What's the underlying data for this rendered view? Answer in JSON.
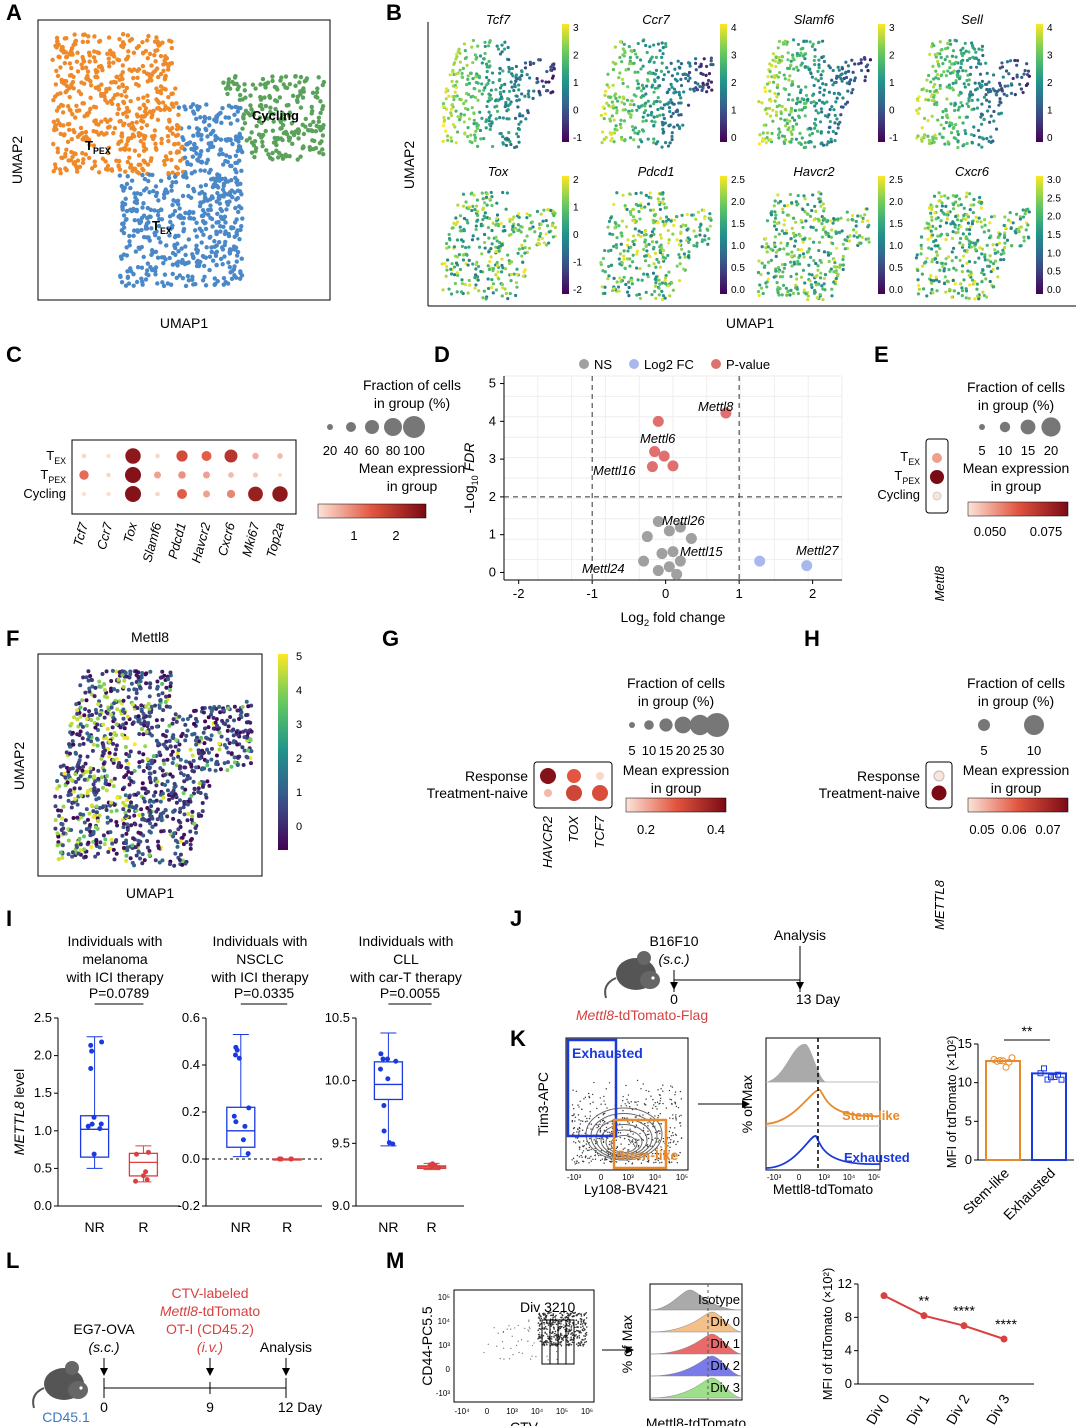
{
  "panel_letters": [
    "A",
    "B",
    "C",
    "D",
    "E",
    "F",
    "G",
    "H",
    "I",
    "J",
    "K",
    "L",
    "M"
  ],
  "colors": {
    "tpex": "#ee8a2a",
    "tex": "#4a88c8",
    "cycling": "#5aa25a",
    "red": "#d94040",
    "blue": "#1a3adf",
    "orange": "#e88a2a",
    "ns": "#a0a0a0",
    "lfc": "#a8b8ee",
    "pval": "#e07070"
  },
  "panelA": {
    "xlabel": "UMAP1",
    "ylabel": "UMAP2",
    "clusters": [
      {
        "name": "T",
        "sub": "PEX"
      },
      {
        "name": "T",
        "sub": "EX"
      },
      {
        "name": "Cycling",
        "sub": ""
      }
    ]
  },
  "panelB": {
    "xlabel": "UMAP1",
    "ylabel": "UMAP2",
    "genes": [
      {
        "name": "Tcf7",
        "ticks": [
          "3",
          "2",
          "1",
          "0",
          "-1"
        ]
      },
      {
        "name": "Ccr7",
        "ticks": [
          "4",
          "3",
          "2",
          "1",
          "0"
        ]
      },
      {
        "name": "Slamf6",
        "ticks": [
          "3",
          "2",
          "1",
          "0",
          "-1"
        ]
      },
      {
        "name": "Sell",
        "ticks": [
          "4",
          "3",
          "2",
          "1",
          "0"
        ]
      },
      {
        "name": "Tox",
        "ticks": [
          "2",
          "1",
          "0",
          "-1",
          "-2"
        ]
      },
      {
        "name": "Pdcd1",
        "ticks": [
          "2.5",
          "2.0",
          "1.5",
          "1.0",
          "0.5",
          "0.0"
        ]
      },
      {
        "name": "Havcr2",
        "ticks": [
          "2.5",
          "2.0",
          "1.5",
          "1.0",
          "0.5",
          "0.0"
        ]
      },
      {
        "name": "Cxcr6",
        "ticks": [
          "3.0",
          "2.5",
          "2.0",
          "1.5",
          "1.0",
          "0.5",
          "0.0"
        ]
      }
    ]
  },
  "panelC": {
    "rows": [
      {
        "name": "T",
        "sub": "EX"
      },
      {
        "name": "T",
        "sub": "PEX"
      },
      {
        "name": "Cycling",
        "sub": ""
      }
    ],
    "cols": [
      "Tcf7",
      "Ccr7",
      "Tox",
      "Slamf6",
      "Pdcd1",
      "Havcr2",
      "Cxcr6",
      "Mki67",
      "Top2a"
    ],
    "dots": [
      [
        0.05,
        0.02,
        0.95,
        0.05,
        0.6,
        0.5,
        0.75,
        0.2,
        0.15
      ],
      [
        0.45,
        0.05,
        1.0,
        0.25,
        0.3,
        0.25,
        0.15,
        0.1,
        0.02
      ],
      [
        0.02,
        0.02,
        1.0,
        0.05,
        0.5,
        0.25,
        0.35,
        0.9,
        0.95
      ]
    ],
    "legend_title": "Fraction of cells\nin group (%)",
    "size_ticks": [
      "20",
      "40",
      "60",
      "80",
      "100"
    ],
    "color_title": "Mean expression\nin group",
    "color_ticks": [
      "1",
      "2"
    ]
  },
  "panelD": {
    "xlabel": "Log",
    "xlabel_sub": "2",
    "xlabel_rest": " fold change",
    "ylabel": "-Log",
    "ylabel_sub": "10",
    "ylabel_rest": " FDR",
    "legend": [
      "NS",
      "Log2 FC",
      "P-value"
    ],
    "xticks": [
      "-2",
      "-1",
      "0",
      "1",
      "2"
    ],
    "yticks": [
      "0",
      "1",
      "2",
      "3",
      "4",
      "5"
    ],
    "labels": [
      "Mettl8",
      "Mettl6",
      "Mettl16",
      "Mettl26",
      "Mettl15",
      "Mettl27",
      "Mettl24"
    ]
  },
  "chart_data": {
    "type": "scatter",
    "xlim": [
      -2.2,
      2.4
    ],
    "ylim": [
      -0.2,
      5.2
    ],
    "thresholds": {
      "x": [
        -1,
        1
      ],
      "y": 2
    },
    "points": [
      {
        "x": 0.82,
        "y": 4.22,
        "class": "P-value",
        "label": "Mettl8"
      },
      {
        "x": -0.1,
        "y": 4.0,
        "class": "P-value"
      },
      {
        "x": -0.02,
        "y": 3.08,
        "class": "P-value",
        "label": "Mettl6"
      },
      {
        "x": -0.15,
        "y": 3.2,
        "class": "P-value"
      },
      {
        "x": 0.1,
        "y": 2.82,
        "class": "P-value"
      },
      {
        "x": -0.18,
        "y": 2.8,
        "class": "P-value",
        "label": "Mettl16"
      },
      {
        "x": -0.1,
        "y": 1.35,
        "class": "NS"
      },
      {
        "x": 0.05,
        "y": 1.1,
        "class": "NS"
      },
      {
        "x": 0.2,
        "y": 1.2,
        "class": "NS",
        "label": "Mettl26"
      },
      {
        "x": -0.25,
        "y": 0.95,
        "class": "NS"
      },
      {
        "x": 0.35,
        "y": 0.9,
        "class": "NS"
      },
      {
        "x": 0.1,
        "y": 0.55,
        "class": "NS",
        "label": "Mettl15"
      },
      {
        "x": -0.05,
        "y": 0.5,
        "class": "NS"
      },
      {
        "x": 0.2,
        "y": 0.3,
        "class": "NS"
      },
      {
        "x": -0.3,
        "y": 0.3,
        "class": "NS"
      },
      {
        "x": 0.05,
        "y": 0.15,
        "class": "NS"
      },
      {
        "x": -0.1,
        "y": 0.05,
        "class": "NS",
        "label": "Mettl24"
      },
      {
        "x": 0.15,
        "y": -0.05,
        "class": "NS"
      },
      {
        "x": 1.28,
        "y": 0.3,
        "class": "Log2 FC"
      },
      {
        "x": 1.92,
        "y": 0.18,
        "class": "Log2 FC",
        "label": "Mettl27"
      }
    ]
  },
  "panelE": {
    "rows": [
      {
        "name": "T",
        "sub": "EX"
      },
      {
        "name": "T",
        "sub": "PEX"
      },
      {
        "name": "Cycling",
        "sub": ""
      }
    ],
    "col": "Mettl8",
    "legend_title": "Fraction of cells\nin group (%)",
    "size_ticks": [
      "5",
      "10",
      "15",
      "20"
    ],
    "color_title": "Mean expression\nin group",
    "color_ticks": [
      "0.050",
      "0.075"
    ]
  },
  "panelF": {
    "title": "Mettl8",
    "xlabel": "UMAP1",
    "ylabel": "UMAP2",
    "ticks": [
      "5",
      "4",
      "3",
      "2",
      "1",
      "0"
    ]
  },
  "panelG": {
    "rows": [
      "Response",
      "Treatment-naive"
    ],
    "cols": [
      "HAVCR2",
      "TOX",
      "TCF7"
    ],
    "legend_title": "Fraction of cells\nin group (%)",
    "size_ticks": [
      "5",
      "10",
      "15",
      "20",
      "25",
      "30"
    ],
    "color_title": "Mean expression\nin group",
    "color_ticks": [
      "0.2",
      "0.4"
    ]
  },
  "panelH": {
    "rows": [
      "Response",
      "Treatment-naive"
    ],
    "col": "METTL8",
    "legend_title": "Fraction of cells\nin group (%)",
    "size_ticks": [
      "5",
      "10"
    ],
    "color_title": "Mean expression\nin group",
    "color_ticks": [
      "0.05",
      "0.06",
      "0.07"
    ]
  },
  "panelI": {
    "ylabel": "METTL8 level",
    "groups": [
      {
        "title": "Individuals with\nmelanoma\nwith ICI therapy",
        "p": "P=0.0789",
        "yticks": [
          "0.0",
          "0.5",
          "1.0",
          "1.5",
          "2.0",
          "2.5"
        ],
        "xt": [
          "NR",
          "R"
        ],
        "nr": {
          "min": 0.5,
          "q1": 0.65,
          "med": 1.02,
          "q3": 1.2,
          "max": 2.25
        },
        "r": {
          "min": 0.32,
          "q1": 0.4,
          "med": 0.58,
          "q3": 0.7,
          "max": 0.8
        }
      },
      {
        "title": "Individuals with\nNSCLC\nwith ICI therapy",
        "p": "P=0.0335",
        "yticks": [
          "-0.2",
          "0.0",
          "0.2",
          "0.4",
          "0.6"
        ],
        "xt": [
          "NR",
          "R"
        ],
        "nr": {
          "min": 0.01,
          "q1": 0.05,
          "med": 0.12,
          "q3": 0.22,
          "max": 0.53
        },
        "r": {
          "min": 0.0,
          "q1": 0.0,
          "med": 0.0,
          "q3": 0.0,
          "max": 0.0
        }
      },
      {
        "title": "Individuals with\nCLL\nwith car-T therapy",
        "p": "P=0.0055",
        "yticks": [
          "9.0",
          "9.5",
          "10.0",
          "10.5"
        ],
        "xt": [
          "NR",
          "R"
        ],
        "nr": {
          "min": 9.48,
          "q1": 9.85,
          "med": 9.97,
          "q3": 10.15,
          "max": 10.38
        },
        "r": {
          "min": 9.29,
          "q1": 9.3,
          "med": 9.31,
          "q3": 9.32,
          "max": 9.34
        }
      }
    ]
  },
  "panelJ": {
    "top": "B16F10",
    "route": "(s.c.)",
    "analysis": "Analysis",
    "t0": "0",
    "t1": "13 Day",
    "mouse": "Mettl8",
    "mouse_rest": "-tdTomato-Flag"
  },
  "panelK": {
    "facs_x": "Ly108-BV421",
    "facs_y": "Tim3-APC",
    "gate_ex": "Exhausted",
    "gate_st": "Stem-like",
    "hist_x": "Mettl8-tdTomato",
    "hist_y": "% of Max",
    "lbl_st": "Stem-like",
    "lbl_ex": "Exhausted",
    "bar_y": "MFI of tdTomato (×10²)",
    "bar_yticks": [
      "0",
      "5",
      "10",
      "15"
    ],
    "bar_cats": [
      "Stem-like",
      "Exhausted"
    ],
    "bar_vals": [
      12.8,
      11.2
    ],
    "sig": "**",
    "xticks": [
      "-10³",
      "0",
      "10³",
      "10⁴",
      "10⁵"
    ]
  },
  "panelL": {
    "label_red": "CTV-labeled",
    "label_red2_it": "Mettl8",
    "label_red2": "-tdTomato",
    "label_red3": "OT-I (CD45.2)",
    "label_red4": "(i.v.)",
    "eg7": "EG7-OVA",
    "sc": "(s.c.)",
    "analysis": "Analysis",
    "t0": "0",
    "t9": "9",
    "t12": "12 Day",
    "mouse": "CD45.1"
  },
  "panelM": {
    "facs_x": "CTV",
    "facs_y": "CD44-PC5.5",
    "div_lbl": "Div 3210",
    "hist_x": "Mettl8-tdTomato",
    "hist_y": "% of Max",
    "hist_labels": [
      "Isotype",
      "Div 0",
      "Div 1",
      "Div 2",
      "Div 3"
    ],
    "line_y": "MFI of tdTomato (×10²)",
    "line_cats": [
      "Div 0",
      "Div 1",
      "Div 2",
      "Div 3"
    ],
    "line_vals": [
      10.6,
      8.2,
      7.0,
      5.4
    ],
    "line_yticks": [
      "0",
      "4",
      "8",
      "12"
    ],
    "sig": [
      "**",
      "****",
      "****"
    ]
  }
}
